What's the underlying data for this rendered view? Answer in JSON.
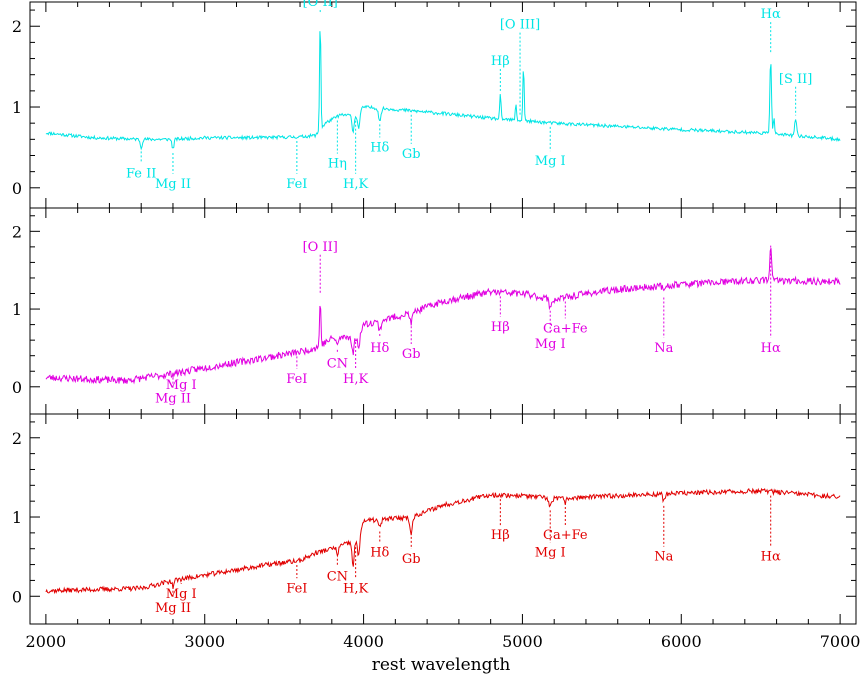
{
  "chart_data": {
    "type": "line",
    "xlabel": "rest wavelength",
    "xlim": [
      1900,
      7100
    ],
    "x_ticks": [
      2000,
      3000,
      4000,
      5000,
      6000,
      7000
    ],
    "x_tick_labels": [
      "2000",
      "3000",
      "4000",
      "5000",
      "6000",
      "7000"
    ],
    "panels": [
      {
        "color": "#00e5e5",
        "ylim": [
          -0.25,
          2.3
        ],
        "y_ticks": [
          0,
          1,
          2
        ],
        "y_tick_labels": [
          "0",
          "1",
          "2"
        ],
        "noise": 0.02,
        "seed": 11,
        "continuum": [
          [
            2000,
            0.68
          ],
          [
            2300,
            0.62
          ],
          [
            2600,
            0.6
          ],
          [
            2800,
            0.6
          ],
          [
            3000,
            0.62
          ],
          [
            3300,
            0.62
          ],
          [
            3600,
            0.63
          ],
          [
            3700,
            0.65
          ],
          [
            3760,
            0.8
          ],
          [
            3850,
            0.9
          ],
          [
            3950,
            0.9
          ],
          [
            4000,
            1.0
          ],
          [
            4200,
            0.97
          ],
          [
            4500,
            0.92
          ],
          [
            4800,
            0.86
          ],
          [
            5200,
            0.8
          ],
          [
            5600,
            0.76
          ],
          [
            6000,
            0.72
          ],
          [
            6500,
            0.68
          ],
          [
            7000,
            0.6
          ]
        ],
        "features": [
          {
            "w": 3727,
            "a": 1.4,
            "s": 4
          },
          {
            "w": 4861,
            "a": 0.3,
            "s": 4
          },
          {
            "w": 4959,
            "a": 0.2,
            "s": 4
          },
          {
            "w": 5007,
            "a": 0.7,
            "s": 4
          },
          {
            "w": 6563,
            "a": 0.95,
            "s": 5
          },
          {
            "w": 6583,
            "a": 0.2,
            "s": 4
          },
          {
            "w": 6720,
            "a": 0.2,
            "s": 6
          },
          {
            "w": 2600,
            "a": -0.1,
            "s": 6
          },
          {
            "w": 2800,
            "a": -0.12,
            "s": 6
          },
          {
            "w": 3934,
            "a": -0.2,
            "s": 7
          },
          {
            "w": 3969,
            "a": -0.2,
            "s": 7
          },
          {
            "w": 4102,
            "a": -0.15,
            "s": 8
          }
        ],
        "lines": [
          {
            "label": "[O II]",
            "w": 3727,
            "above": true,
            "level": 2.25
          },
          {
            "label": "Hβ",
            "w": 4861,
            "above": true,
            "level": 1.52
          },
          {
            "label": "[O III]",
            "w": 4985,
            "above": true,
            "level": 1.97
          },
          {
            "label": "Hα",
            "w": 6563,
            "above": true,
            "level": 2.1
          },
          {
            "label": "[S II]",
            "w": 6720,
            "above": true,
            "level": 1.3
          },
          {
            "label": "Fe II",
            "w": 2600,
            "above": false,
            "level": 0.13
          },
          {
            "label": "Mg II",
            "w": 2800,
            "above": false,
            "level": -0.0
          },
          {
            "label": "FeI",
            "w": 3580,
            "above": false,
            "level": -0.0
          },
          {
            "label": "Hη",
            "w": 3835,
            "above": false,
            "level": 0.25
          },
          {
            "label": "H,K",
            "w": 3950,
            "above": false,
            "level": -0.0
          },
          {
            "label": "Hδ",
            "w": 4102,
            "above": false,
            "level": 0.45
          },
          {
            "label": "Gb",
            "w": 4300,
            "above": false,
            "level": 0.37
          },
          {
            "label": "Mg I",
            "w": 5175,
            "above": false,
            "level": 0.28
          }
        ]
      },
      {
        "color": "#e100e1",
        "ylim": [
          -0.35,
          2.3
        ],
        "y_ticks": [
          0,
          1,
          2
        ],
        "y_tick_labels": [
          "0",
          "1",
          "2"
        ],
        "noise": 0.045,
        "seed": 23,
        "continuum": [
          [
            2000,
            0.12
          ],
          [
            2500,
            0.08
          ],
          [
            2800,
            0.17
          ],
          [
            3100,
            0.28
          ],
          [
            3400,
            0.38
          ],
          [
            3600,
            0.45
          ],
          [
            3700,
            0.5
          ],
          [
            3800,
            0.62
          ],
          [
            3950,
            0.65
          ],
          [
            4000,
            0.8
          ],
          [
            4300,
            0.95
          ],
          [
            4500,
            1.1
          ],
          [
            4800,
            1.22
          ],
          [
            5000,
            1.2
          ],
          [
            5200,
            1.12
          ],
          [
            5400,
            1.2
          ],
          [
            5600,
            1.25
          ],
          [
            6000,
            1.32
          ],
          [
            6500,
            1.37
          ],
          [
            7000,
            1.35
          ]
        ],
        "features": [
          {
            "w": 3727,
            "a": 0.6,
            "s": 4
          },
          {
            "w": 6563,
            "a": 0.5,
            "s": 5
          },
          {
            "w": 3934,
            "a": -0.22,
            "s": 7
          },
          {
            "w": 3969,
            "a": -0.22,
            "s": 7
          },
          {
            "w": 4102,
            "a": -0.12,
            "s": 8
          },
          {
            "w": 4300,
            "a": -0.12,
            "s": 8
          },
          {
            "w": 3835,
            "a": -0.1,
            "s": 6
          },
          {
            "w": 5175,
            "a": -0.1,
            "s": 8
          },
          {
            "w": 5890,
            "a": -0.1,
            "s": 6
          }
        ],
        "lines": [
          {
            "label": "[O II]",
            "w": 3727,
            "above": true,
            "level": 1.75
          },
          {
            "label": "FeI",
            "w": 3580,
            "above": false,
            "level": 0.05
          },
          {
            "label": "CN",
            "w": 3835,
            "above": false,
            "level": 0.25
          },
          {
            "label": "H,K",
            "w": 3950,
            "above": false,
            "level": 0.05
          },
          {
            "label": "Hδ",
            "w": 4102,
            "above": false,
            "level": 0.45
          },
          {
            "label": "Gb",
            "w": 4300,
            "above": false,
            "level": 0.37
          },
          {
            "label": "Hβ",
            "w": 4861,
            "above": false,
            "level": 0.72
          },
          {
            "label": "Mg I",
            "w": 5175,
            "above": false,
            "level": 0.5
          },
          {
            "label": "Ca+Fe",
            "w": 5270,
            "above": false,
            "level": 0.7
          },
          {
            "label": "Na",
            "w": 5890,
            "above": false,
            "level": 0.45
          },
          {
            "label": "Hα",
            "w": 6563,
            "above": false,
            "level": 0.45
          },
          {
            "label": "Mg I",
            "w": 2852,
            "above": false,
            "level": -0.03
          },
          {
            "label": "Mg II",
            "w": 2800,
            "above": false,
            "level": -0.2
          }
        ]
      },
      {
        "color": "#e10000",
        "ylim": [
          -0.35,
          2.3
        ],
        "y_ticks": [
          0,
          1,
          2
        ],
        "y_tick_labels": [
          "0",
          "1",
          "2"
        ],
        "noise": 0.03,
        "seed": 37,
        "continuum": [
          [
            2000,
            0.07
          ],
          [
            2600,
            0.1
          ],
          [
            2800,
            0.2
          ],
          [
            3100,
            0.3
          ],
          [
            3400,
            0.4
          ],
          [
            3600,
            0.45
          ],
          [
            3700,
            0.55
          ],
          [
            3800,
            0.6
          ],
          [
            3950,
            0.7
          ],
          [
            4000,
            0.95
          ],
          [
            4300,
            1.0
          ],
          [
            4500,
            1.15
          ],
          [
            4800,
            1.28
          ],
          [
            5000,
            1.27
          ],
          [
            5200,
            1.23
          ],
          [
            5600,
            1.27
          ],
          [
            6000,
            1.3
          ],
          [
            6500,
            1.33
          ],
          [
            7000,
            1.25
          ]
        ],
        "features": [
          {
            "w": 3934,
            "a": -0.3,
            "s": 7
          },
          {
            "w": 3969,
            "a": -0.3,
            "s": 7
          },
          {
            "w": 4102,
            "a": -0.1,
            "s": 8
          },
          {
            "w": 4300,
            "a": -0.2,
            "s": 8
          },
          {
            "w": 3835,
            "a": -0.1,
            "s": 6
          },
          {
            "w": 5175,
            "a": -0.1,
            "s": 8
          },
          {
            "w": 5270,
            "a": -0.06,
            "s": 6
          },
          {
            "w": 5890,
            "a": -0.1,
            "s": 6
          },
          {
            "w": 2800,
            "a": -0.08,
            "s": 6
          }
        ],
        "lines": [
          {
            "label": "FeI",
            "w": 3580,
            "above": false,
            "level": 0.05
          },
          {
            "label": "CN",
            "w": 3835,
            "above": false,
            "level": 0.2
          },
          {
            "label": "H,K",
            "w": 3950,
            "above": false,
            "level": 0.05
          },
          {
            "label": "Hδ",
            "w": 4102,
            "above": false,
            "level": 0.5
          },
          {
            "label": "Gb",
            "w": 4300,
            "above": false,
            "level": 0.42
          },
          {
            "label": "Hβ",
            "w": 4861,
            "above": false,
            "level": 0.72
          },
          {
            "label": "Mg I",
            "w": 5175,
            "above": false,
            "level": 0.5
          },
          {
            "label": "Ca+Fe",
            "w": 5270,
            "above": false,
            "level": 0.72
          },
          {
            "label": "Na",
            "w": 5890,
            "above": false,
            "level": 0.45
          },
          {
            "label": "Hα",
            "w": 6563,
            "above": false,
            "level": 0.45
          },
          {
            "label": "Mg I",
            "w": 2852,
            "above": false,
            "level": -0.02
          },
          {
            "label": "Mg II",
            "w": 2800,
            "above": false,
            "level": -0.2
          }
        ]
      }
    ]
  }
}
